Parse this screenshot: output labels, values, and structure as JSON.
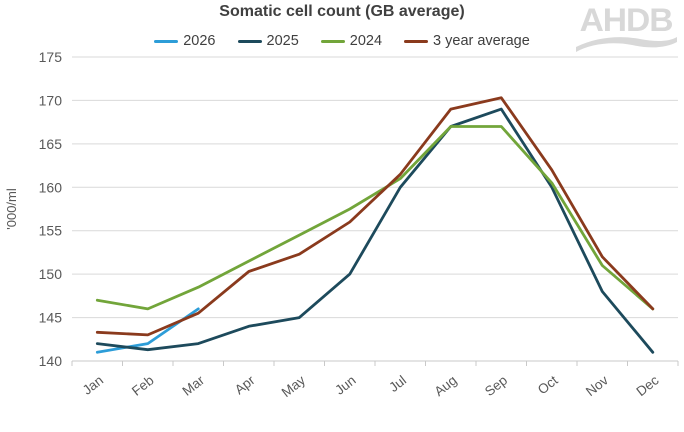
{
  "header": {
    "title": "Somatic cell count (GB average)",
    "logo_text": "AHDB"
  },
  "colors": {
    "grid": "#d9d9d9",
    "axis_line": "#c9c9c9",
    "axis_text": "#595959",
    "title_text": "#404040",
    "logo": "#d8d8d8",
    "series_2026": "#2d9dd8",
    "series_2025": "#1d4a5c",
    "series_2024": "#72a53a",
    "series_3yr_avg": "#8a3a1d"
  },
  "chart_data": {
    "type": "line",
    "title": "Somatic cell count (GB average)",
    "xlabel": "",
    "ylabel": "'000/ml",
    "ylim": [
      140,
      175
    ],
    "y_ticks": [
      140,
      145,
      150,
      155,
      160,
      165,
      170,
      175
    ],
    "grid": true,
    "legend_position": "top-center",
    "categories": [
      "Jan",
      "Feb",
      "Mar",
      "Apr",
      "May",
      "Jun",
      "Jul",
      "Aug",
      "Sep",
      "Oct",
      "Nov",
      "Dec"
    ],
    "series": [
      {
        "name": "2026",
        "color": "#2d9dd8",
        "values": [
          141,
          142,
          146,
          null,
          null,
          null,
          null,
          null,
          null,
          null,
          null,
          null
        ]
      },
      {
        "name": "2025",
        "color": "#1d4a5c",
        "values": [
          142,
          141.3,
          142,
          144,
          145,
          150,
          160,
          167,
          169,
          160,
          148,
          141
        ]
      },
      {
        "name": "2024",
        "color": "#72a53a",
        "values": [
          147,
          146,
          148.5,
          151.5,
          154.5,
          157.5,
          161,
          167,
          167,
          160.5,
          151,
          146
        ]
      },
      {
        "name": "3 year average",
        "color": "#8a3a1d",
        "values": [
          143.3,
          143,
          145.5,
          150.3,
          152.3,
          156,
          161.5,
          169,
          170.3,
          162,
          152,
          146
        ]
      }
    ]
  }
}
